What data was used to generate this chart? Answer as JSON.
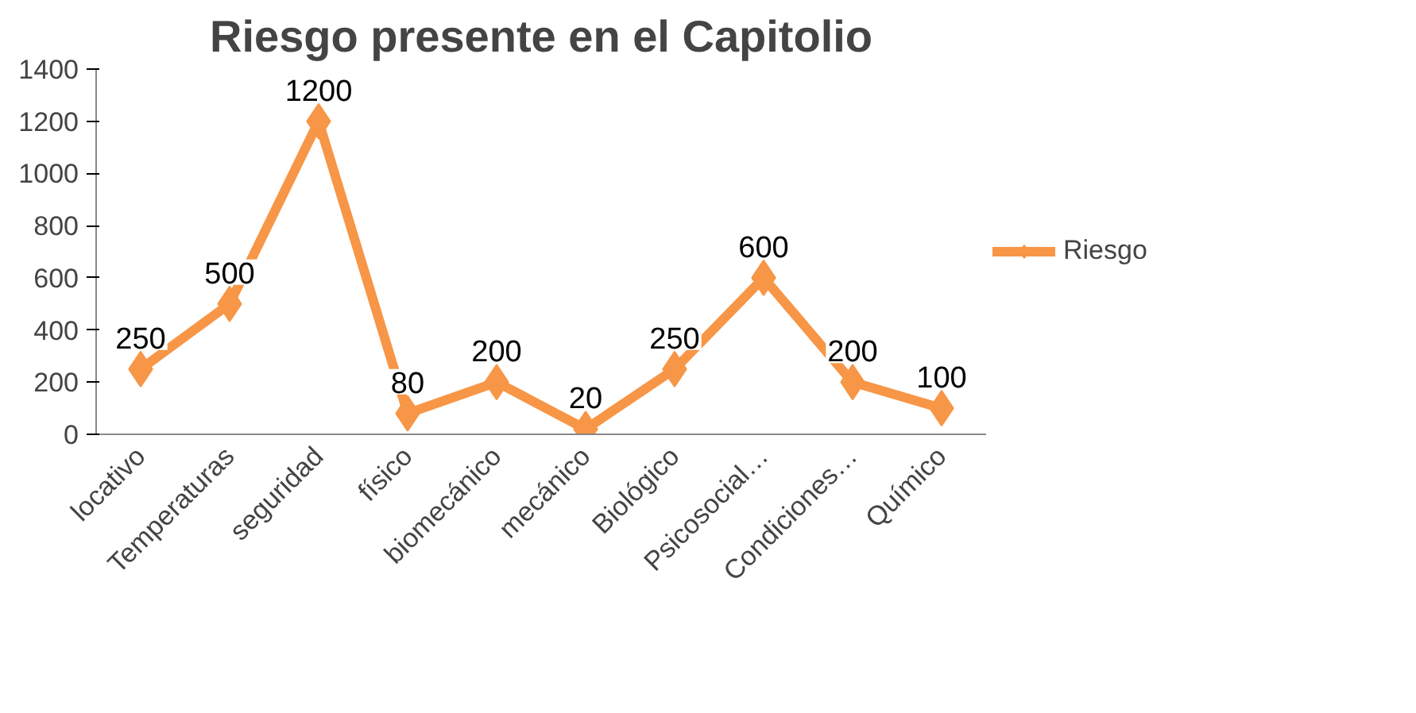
{
  "chart_data": {
    "type": "line",
    "title": "Riesgo presente en el Capitolio",
    "categories": [
      "locativo",
      "Temperaturas",
      "seguridad",
      "físico",
      "biomecánico",
      "mecánico",
      "Biológico",
      "Psicosocial…",
      "Condiciones…",
      "Químico"
    ],
    "series": [
      {
        "name": "Riesgo",
        "color": "#f79646",
        "values": [
          250,
          500,
          1200,
          80,
          200,
          20,
          250,
          600,
          200,
          100
        ]
      }
    ],
    "ylim": [
      0,
      1400
    ],
    "yticks": [
      0,
      200,
      400,
      600,
      800,
      1000,
      1200,
      1400
    ],
    "grid": false,
    "legend": "right",
    "marker": "diamond",
    "line_style": "solid",
    "data_labels": true
  }
}
